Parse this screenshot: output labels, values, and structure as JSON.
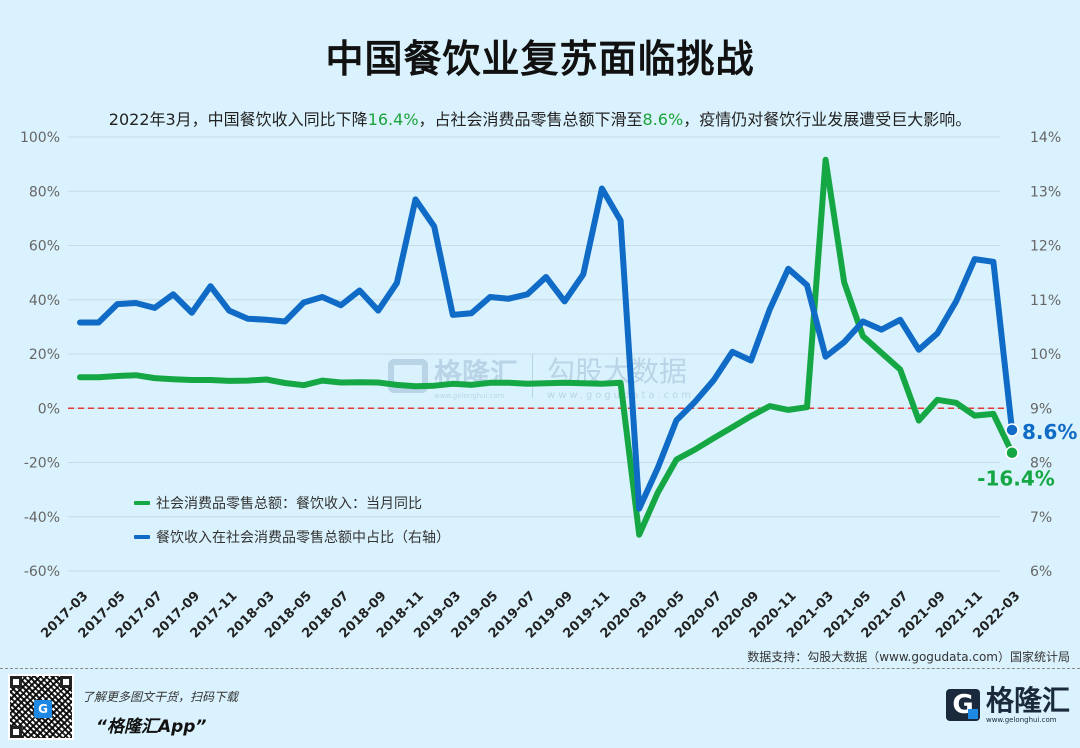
{
  "header": {
    "title": "中国餐饮业复苏面临挑战",
    "subtitle_parts": [
      "2022年3月，中国餐饮收入同比下降",
      "16.4%",
      "，占社会消费品零售总额下滑至",
      "8.6%",
      "，疫情仍对餐饮行业发展遭受巨大影响。"
    ]
  },
  "colors": {
    "background": "#daf2fd",
    "green": "#16a745",
    "blue": "#0f6bc6",
    "highlight": "#1aa33a",
    "zero_line": "#e53935"
  },
  "chart_data": {
    "type": "line",
    "title": "中国餐饮业复苏面临挑战",
    "subtitle": "2022年3月，中国餐饮收入同比下降16.4%，占社会消费品零售总额下滑至8.6%，疫情仍对餐饮行业发展遭受巨大影响。",
    "x": [
      "2017-03",
      "2017-04",
      "2017-05",
      "2017-06",
      "2017-07",
      "2017-08",
      "2017-09",
      "2017-10",
      "2017-11",
      "2017-12",
      "2018-03",
      "2018-04",
      "2018-05",
      "2018-06",
      "2018-07",
      "2018-08",
      "2018-09",
      "2018-10",
      "2018-11",
      "2018-12",
      "2019-03",
      "2019-04",
      "2019-05",
      "2019-06",
      "2019-07",
      "2019-08",
      "2019-09",
      "2019-10",
      "2019-11",
      "2019-12",
      "2020-03",
      "2020-04",
      "2020-05",
      "2020-06",
      "2020-07",
      "2020-08",
      "2020-09",
      "2020-10",
      "2020-11",
      "2020-12",
      "2021-03",
      "2021-04",
      "2021-05",
      "2021-06",
      "2021-07",
      "2021-08",
      "2021-09",
      "2021-10",
      "2021-11",
      "2021-12",
      "2022-03"
    ],
    "x_tick_labels": [
      "2017-03",
      "2017-05",
      "2017-07",
      "2017-09",
      "2017-11",
      "2018-03",
      "2018-05",
      "2018-07",
      "2018-09",
      "2018-11",
      "2019-03",
      "2019-05",
      "2019-07",
      "2019-09",
      "2019-11",
      "2020-03",
      "2020-05",
      "2020-07",
      "2020-09",
      "2020-11",
      "2021-03",
      "2021-05",
      "2021-07",
      "2021-09",
      "2021-11",
      "2022-03"
    ],
    "series": [
      {
        "name": "社会消费品零售总额：餐饮收入：当月同比",
        "axis": "left",
        "color": "#16a745",
        "values": [
          11.4,
          11.4,
          11.9,
          12.2,
          11.1,
          10.7,
          10.4,
          10.4,
          10.1,
          10.2,
          10.6,
          9.3,
          8.5,
          10.2,
          9.5,
          9.6,
          9.5,
          8.6,
          8.1,
          8.3,
          9.0,
          8.6,
          9.4,
          9.4,
          9.0,
          9.2,
          9.4,
          9.2,
          9.0,
          9.4,
          -46.6,
          -31.1,
          -18.9,
          -15.2,
          -11.0,
          -7.0,
          -2.9,
          0.8,
          -0.6,
          0.4,
          91.6,
          46.4,
          26.6,
          20.4,
          14.3,
          -4.5,
          3.1,
          2.0,
          -2.7,
          -2.1,
          -16.4
        ],
        "end_label": "-16.4%"
      },
      {
        "name": "餐饮收入在社会消费品零售总额中占比（右轴）",
        "axis": "right",
        "color": "#0f6bc6",
        "values": [
          10.58,
          10.58,
          10.92,
          10.94,
          10.85,
          11.1,
          10.76,
          11.25,
          10.8,
          10.65,
          10.63,
          10.6,
          10.95,
          11.05,
          10.9,
          11.17,
          10.8,
          11.31,
          12.85,
          12.35,
          10.72,
          10.75,
          11.05,
          11.02,
          11.1,
          11.42,
          10.97,
          11.47,
          13.05,
          12.46,
          7.15,
          7.9,
          8.78,
          9.12,
          9.52,
          10.04,
          9.88,
          10.82,
          11.57,
          11.27,
          9.95,
          10.22,
          10.6,
          10.45,
          10.63,
          10.08,
          10.38,
          10.97,
          11.75,
          11.7,
          8.6
        ],
        "end_label": "8.6%"
      }
    ],
    "left_axis": {
      "ticks": [
        "100%",
        "80%",
        "60%",
        "40%",
        "20%",
        "0%",
        "-20%",
        "-40%",
        "-60%"
      ],
      "range": [
        -60,
        100
      ]
    },
    "right_axis": {
      "ticks": [
        "14%",
        "13%",
        "12%",
        "11%",
        "10%",
        "9%",
        "8%",
        "7%",
        "6%"
      ],
      "range": [
        6,
        14
      ]
    },
    "zero_line": "0% (red dashed)",
    "grid": true,
    "legend_position": "lower-left"
  },
  "legend": {
    "items": [
      {
        "label": "社会消费品零售总额：餐饮收入：当月同比"
      },
      {
        "label": "餐饮收入在社会消费品零售总额中占比（右轴）"
      }
    ]
  },
  "source": {
    "text": "数据支持：勾股大数据（www.gogudata.com）国家统计局"
  },
  "watermark": {
    "brand": "格隆汇",
    "brand_url": "www.gelonghui.com",
    "partner": "勾股大数据",
    "partner_url": "www.gogudata.com"
  },
  "footer": {
    "promo_line1": "了解更多图文干货，扫码下载",
    "promo_line2": "“格隆汇App”",
    "brand_name": "格隆汇",
    "brand_url": "www.gelonghui.com",
    "qr_logo": "G"
  }
}
